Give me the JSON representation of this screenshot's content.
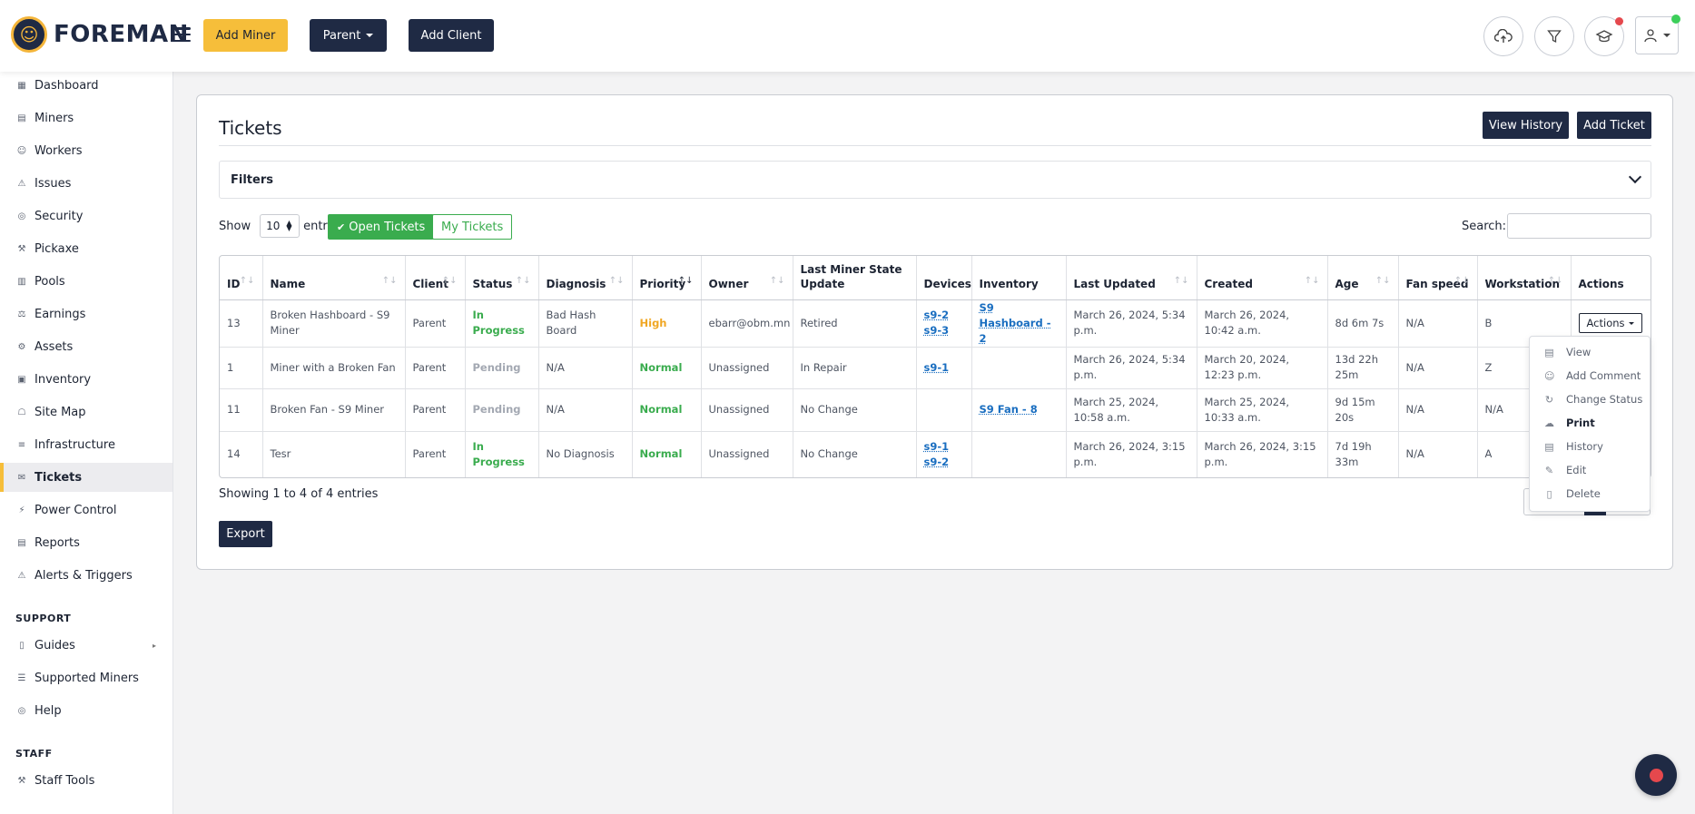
{
  "brand": {
    "name": "FOREMAN"
  },
  "header": {
    "add_miner": "Add Miner",
    "parent": "Parent",
    "add_client": "Add Client",
    "colors": {
      "accent_yellow": "#f6be3a",
      "dark": "#1f2a44",
      "notify_red": "#e5484d",
      "online_green": "#3ccf5a"
    }
  },
  "sidebar": {
    "items": [
      {
        "label": "Dashboard",
        "icon": "dashboard-icon"
      },
      {
        "label": "Miners",
        "icon": "miners-icon"
      },
      {
        "label": "Workers",
        "icon": "workers-icon"
      },
      {
        "label": "Issues",
        "icon": "warning-icon"
      },
      {
        "label": "Security",
        "icon": "security-icon"
      },
      {
        "label": "Pickaxe",
        "icon": "pickaxe-icon"
      },
      {
        "label": "Pools",
        "icon": "pools-icon"
      },
      {
        "label": "Earnings",
        "icon": "earnings-icon"
      },
      {
        "label": "Assets",
        "icon": "assets-icon"
      },
      {
        "label": "Inventory",
        "icon": "inventory-icon"
      },
      {
        "label": "Site Map",
        "icon": "site-map-icon"
      },
      {
        "label": "Infrastructure",
        "icon": "infrastructure-icon"
      },
      {
        "label": "Tickets",
        "icon": "tickets-icon"
      },
      {
        "label": "Power Control",
        "icon": "power-icon"
      },
      {
        "label": "Reports",
        "icon": "reports-icon"
      },
      {
        "label": "Alerts & Triggers",
        "icon": "alerts-icon"
      }
    ],
    "support_heading": "SUPPORT",
    "support_items": [
      {
        "label": "Guides",
        "icon": "guides-icon"
      },
      {
        "label": "Supported Miners",
        "icon": "list-icon"
      },
      {
        "label": "Help",
        "icon": "help-icon"
      }
    ],
    "staff_heading": "STAFF",
    "staff_items": [
      {
        "label": "Staff Tools",
        "icon": "tools-icon"
      }
    ]
  },
  "main": {
    "title": "Tickets",
    "view_history": "View History",
    "add_ticket": "Add Ticket",
    "filters_label": "Filters",
    "show_label": "Show",
    "entries_value": "10",
    "entries_label": "entries",
    "open_tickets": "Open Tickets",
    "my_tickets": "My Tickets",
    "search_label": "Search:",
    "showing": "Showing 1 to 4 of 4 entries",
    "export": "Export"
  },
  "table": {
    "columns": [
      "ID",
      "Name",
      "Client",
      "Status",
      "Diagnosis",
      "Priority",
      "Owner",
      "Last Miner State Update",
      "Devices",
      "Inventory",
      "Last Updated",
      "Created",
      "Age",
      "Fan speed",
      "Workstation",
      "Actions"
    ],
    "rows": [
      {
        "id": "13",
        "name": "Broken Hashboard - S9 Miner",
        "client": "Parent",
        "status": "In Progress",
        "diagnosis": "Bad Hash Board",
        "priority": "High",
        "owner": "ebarr@obm.mn",
        "state": "Retired",
        "devices": [
          "s9-2",
          "s9-3"
        ],
        "inventory": "S9 Hashboard - 2",
        "updated": "March 26, 2024, 5:34 p.m.",
        "created": "March 26, 2024, 10:42 a.m.",
        "age": "8d 6m 7s",
        "fan": "N/A",
        "workstation": "B",
        "action": "Actions"
      },
      {
        "id": "1",
        "name": "Miner with a Broken Fan",
        "client": "Parent",
        "status": "Pending",
        "diagnosis": "N/A",
        "priority": "Normal",
        "owner": "Unassigned",
        "state": "In Repair",
        "devices": [
          "s9-1"
        ],
        "inventory": "",
        "updated": "March 26, 2024, 5:34 p.m.",
        "created": "March 20, 2024, 12:23 p.m.",
        "age": "13d 22h 25m",
        "fan": "N/A",
        "workstation": "Z",
        "action": ""
      },
      {
        "id": "11",
        "name": "Broken Fan - S9 Miner",
        "client": "Parent",
        "status": "Pending",
        "diagnosis": "N/A",
        "priority": "Normal",
        "owner": "Unassigned",
        "state": "No Change",
        "devices": [],
        "inventory": "S9 Fan - 8",
        "updated": "March 25, 2024, 10:58 a.m.",
        "created": "March 25, 2024, 10:33 a.m.",
        "age": "9d 15m 20s",
        "fan": "N/A",
        "workstation": "N/A",
        "action": ""
      },
      {
        "id": "14",
        "name": "Tesr",
        "client": "Parent",
        "status": "In Progress",
        "diagnosis": "No Diagnosis",
        "priority": "Normal",
        "owner": "Unassigned",
        "state": "No Change",
        "devices": [
          "s9-1",
          "s9-2"
        ],
        "inventory": "",
        "updated": "March 26, 2024, 3:15 p.m.",
        "created": "March 26, 2024, 3:15 p.m.",
        "age": "7d 19h 33m",
        "fan": "N/A",
        "workstation": "A",
        "action": ""
      }
    ]
  },
  "actions_menu": [
    {
      "label": "View",
      "icon": "view-icon"
    },
    {
      "label": "Add Comment",
      "icon": "comment-icon"
    },
    {
      "label": "Change Status",
      "icon": "refresh-icon"
    },
    {
      "label": "Print",
      "icon": "print-icon"
    },
    {
      "label": "History",
      "icon": "history-icon"
    },
    {
      "label": "Edit",
      "icon": "edit-icon"
    },
    {
      "label": "Delete",
      "icon": "trash-icon"
    }
  ]
}
